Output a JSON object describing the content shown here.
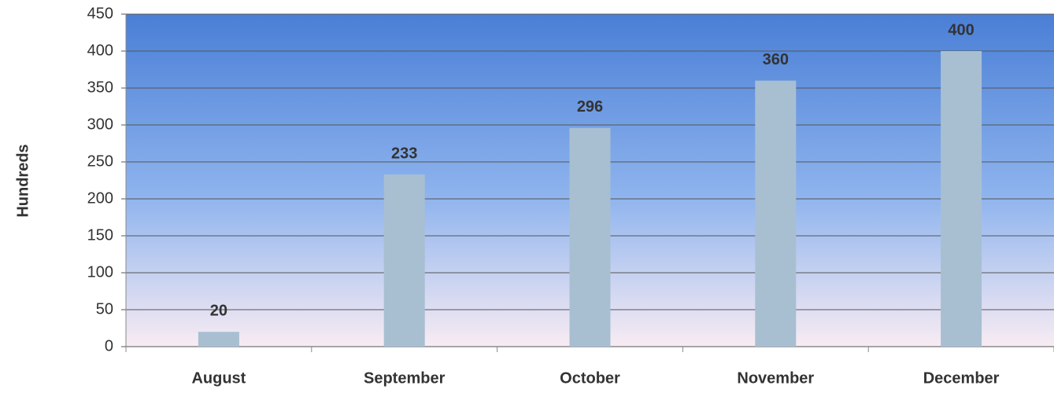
{
  "chart_data": {
    "type": "bar",
    "y_label": "Hundreds",
    "categories": [
      "August",
      "September",
      "October",
      "November",
      "December"
    ],
    "values": [
      20,
      233,
      296,
      360,
      400
    ],
    "color": "#a8bfd2",
    "ylim": [
      0,
      450
    ],
    "yticks": [
      0,
      50,
      100,
      150,
      200,
      250,
      300,
      350,
      400,
      450
    ],
    "grid": true
  }
}
